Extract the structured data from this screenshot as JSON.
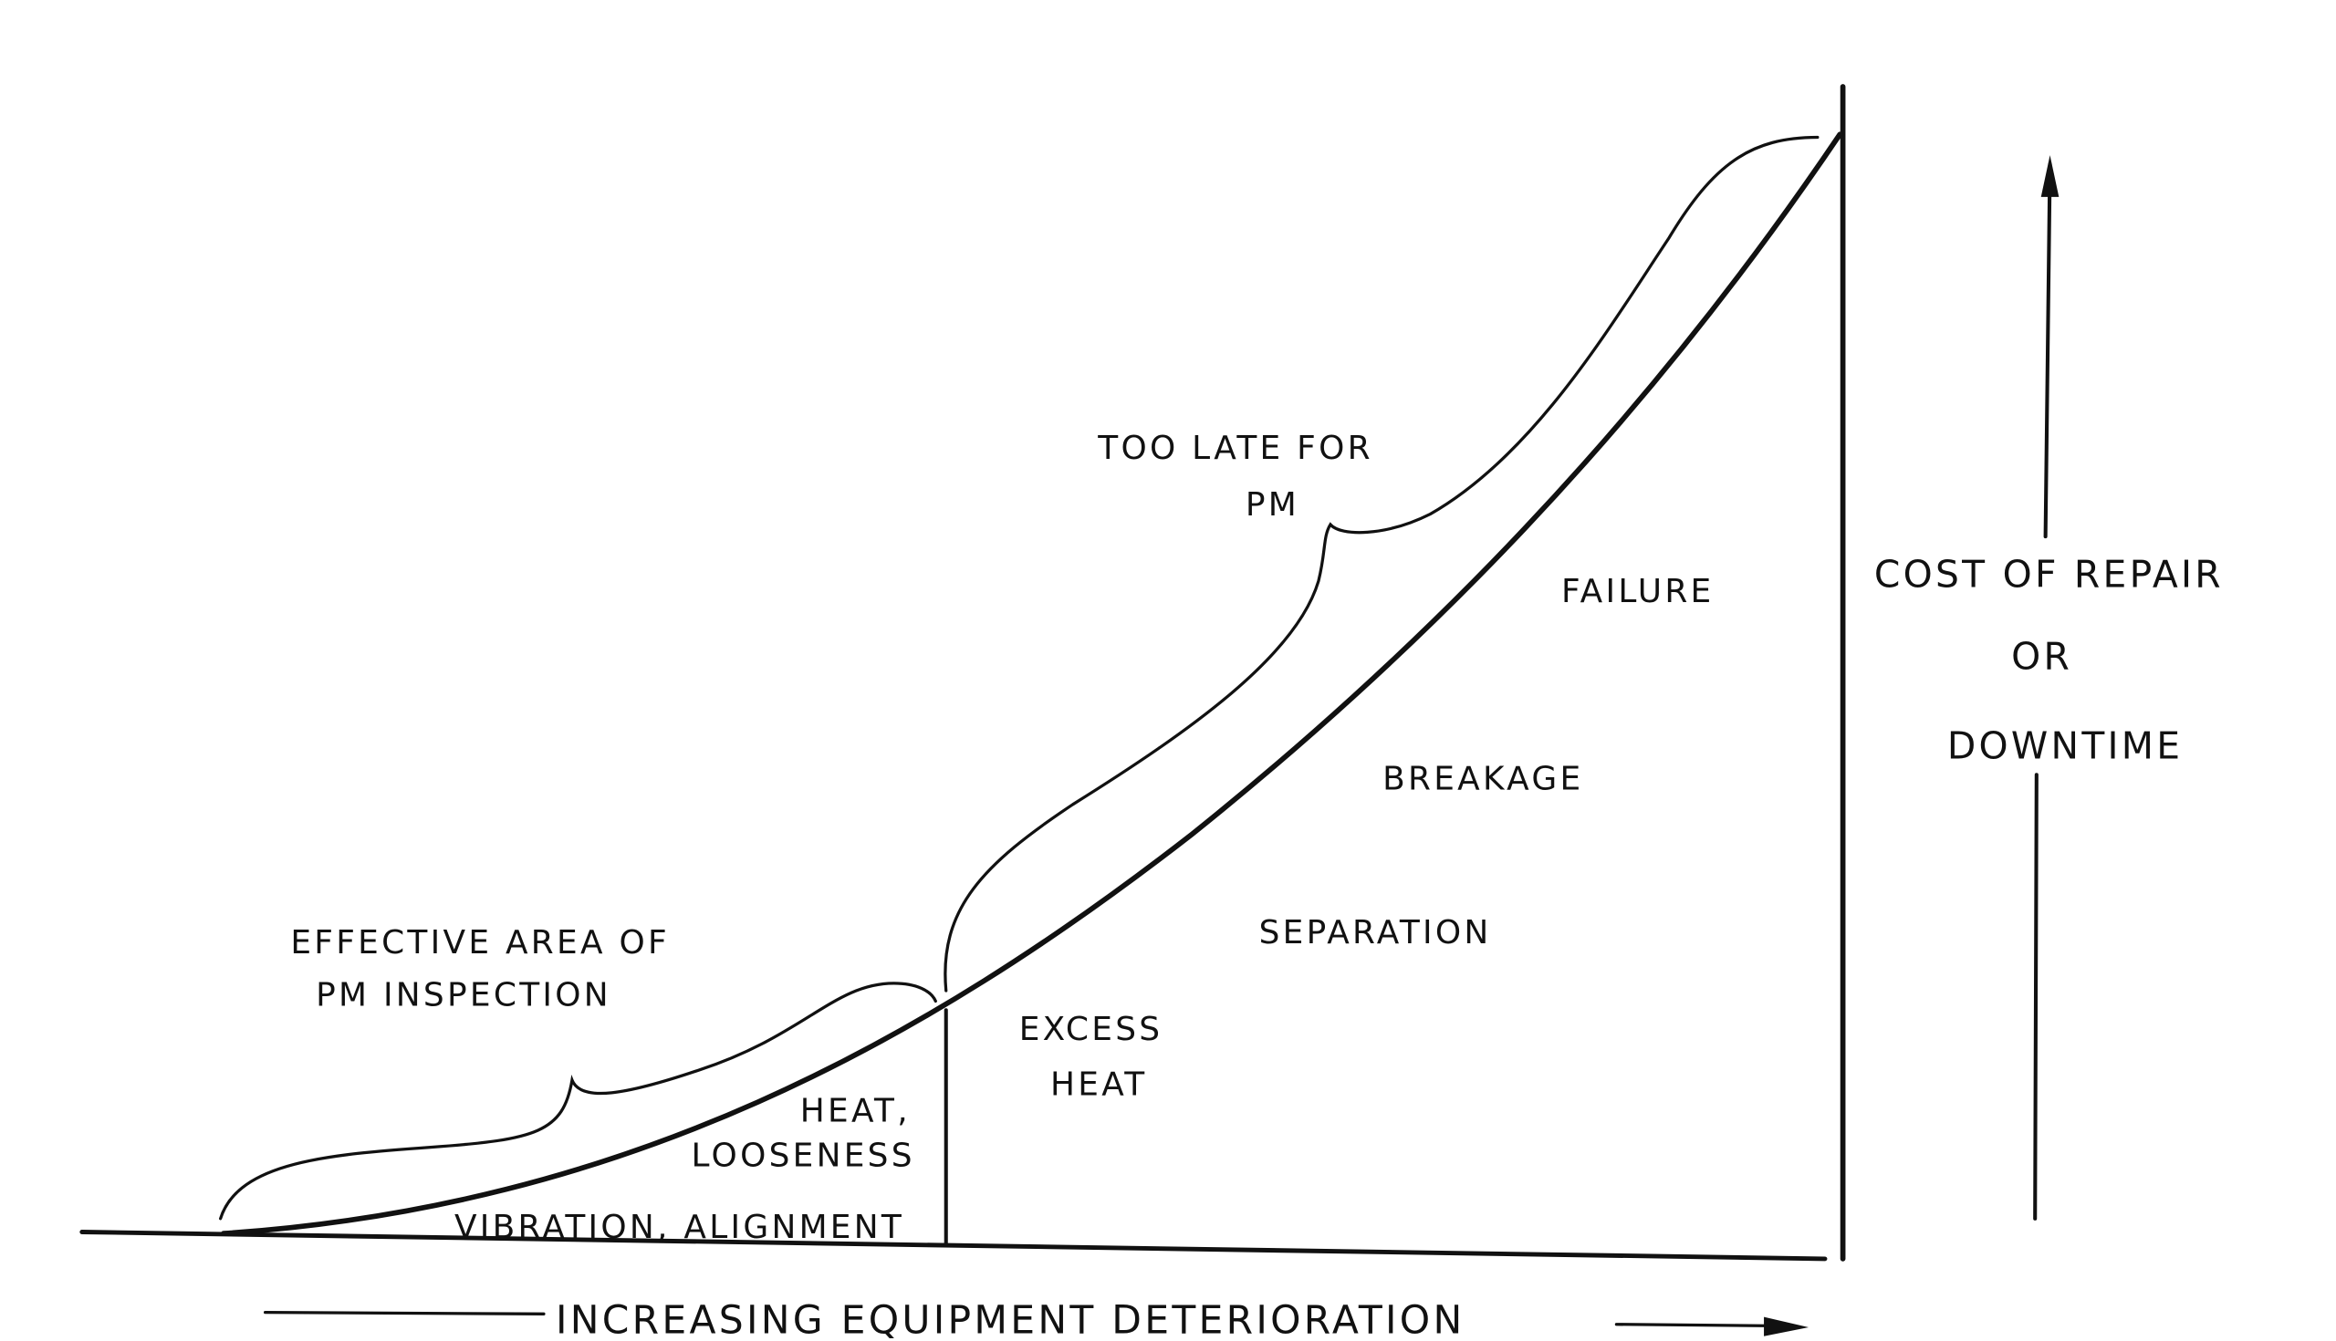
{
  "diagram": {
    "effective_area": [
      "EFFECTIVE  AREA  OF",
      "PM   INSPECTION"
    ],
    "too_late": [
      "TOO  LATE  FOR",
      "PM"
    ],
    "stages": [
      "VIBRATION, ALIGNMENT",
      "HEAT,",
      "LOOSENESS",
      "EXCESS",
      "HEAT",
      "SEPARATION",
      "BREAKAGE",
      "FAILURE"
    ],
    "y_axis_label": [
      "COST  OF  REPAIR",
      "OR",
      "DOWNTIME"
    ],
    "x_axis_label": "INCREASING   EQUIPMENT   DETERIORATION"
  }
}
